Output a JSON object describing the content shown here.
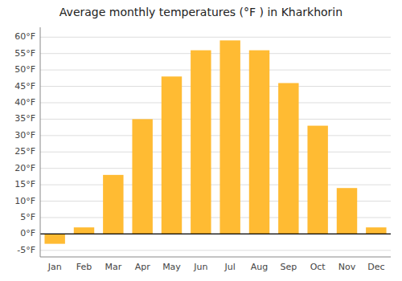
{
  "chart_data": {
    "type": "bar",
    "title": "Average monthly temperatures (°F ) in Kharkhorin",
    "categories": [
      "Jan",
      "Feb",
      "Mar",
      "Apr",
      "May",
      "Jun",
      "Jul",
      "Aug",
      "Sep",
      "Oct",
      "Nov",
      "Dec"
    ],
    "values": [
      -3,
      2,
      18,
      35,
      48,
      56,
      59,
      56,
      46,
      33,
      14,
      2
    ],
    "color": "#FFBB33",
    "ylim": [
      -7,
      63
    ],
    "yticks": [
      {
        "value": -5,
        "label": "-5°F"
      },
      {
        "value": 0,
        "label": "0°F"
      },
      {
        "value": 5,
        "label": "5°F"
      },
      {
        "value": 10,
        "label": "10°F"
      },
      {
        "value": 15,
        "label": "15°F"
      },
      {
        "value": 20,
        "label": "20°F"
      },
      {
        "value": 25,
        "label": "25°F"
      },
      {
        "value": 30,
        "label": "30°F"
      },
      {
        "value": 35,
        "label": "35°F"
      },
      {
        "value": 40,
        "label": "40°F"
      },
      {
        "value": 45,
        "label": "45°F"
      },
      {
        "value": 50,
        "label": "50°F"
      },
      {
        "value": 55,
        "label": "55°F"
      },
      {
        "value": 60,
        "label": "60°F"
      }
    ],
    "grid": true
  }
}
